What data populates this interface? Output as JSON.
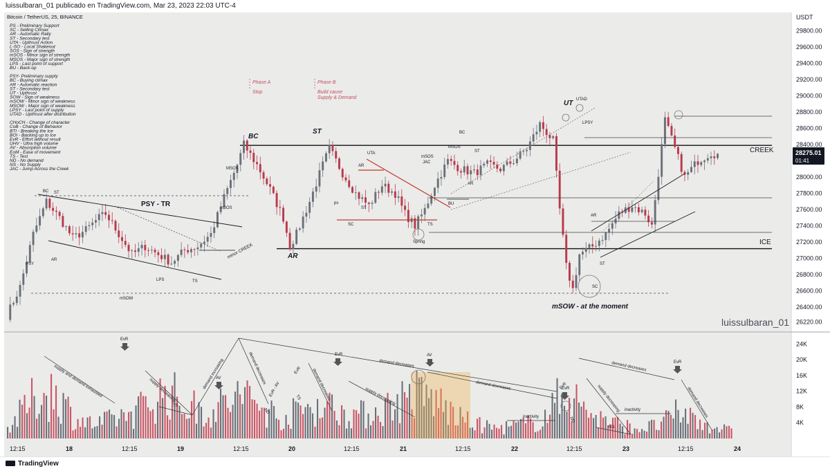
{
  "header": {
    "publication_line": "luissulbaran_01 publicado en TradingView.com, Mar 23, 2023 22:03 UTC-4",
    "symbol_line": "Bitcoin / TetherUS, 25, BINANCE"
  },
  "price_axis": {
    "currency": "USDT",
    "current_price": "28275.01",
    "countdown": "01:41",
    "accent_color": "#131722"
  },
  "legend_groups": [
    [
      "PS - Preliminary Support",
      "SC - Selling Climax",
      "AR - Automatic Rally",
      "ST - Secondary test",
      "UTA - Upthrust Action",
      "L-SO - Local Shakeout",
      "SOS - Sign of strength",
      "mSOS - Minor sign of strength",
      "MSOS - Major sign of strength",
      "LPS - Last point of support",
      "BU - Back-up"
    ],
    [
      "PSY- Preliminary supply",
      "BC - Buying climax",
      "AR - Automatic reaction",
      "ST - Secondary test",
      "UT - Upthrust",
      "SOW - Sign of weakness",
      "mSOW - Minor sign of weakness",
      "MSOW - Major sign of weakness",
      "LPSY - Last point of supply",
      "UTAD - Upthrust after distribution"
    ],
    [
      "CHoCH - Change of character",
      "CoB - Change of Behavior",
      "BTI - Breaking the Ice",
      "BOI - Backing up to Ice",
      "EvR - Effort without result",
      "UHV - Ultra high volume",
      "AV - Absorption volume",
      "EoM - Ease of movement",
      "TS - Test",
      "ND - No demand",
      "NS - No Supply",
      "JAC - Jump Across the Creek"
    ]
  ],
  "annotations": {
    "phase_a_title": "Phase A",
    "phase_a_sub": "Stop",
    "phase_b_title": "Phase B",
    "phase_b_sub1": "Build cause",
    "phase_b_sub2": "Supply & Demand",
    "psy_tr": "PSY - TR",
    "bc_big": "BC",
    "st_big": "ST",
    "ar_big": "AR",
    "ut_big": "UT",
    "msow_note": "mSOW - at the moment",
    "creek": "CREEK",
    "ice": "ICE",
    "minor_creek": "minor CREEK",
    "watermark": "luissulbaran_01",
    "small_labels": {
      "bc1": "BC",
      "st1": "ST",
      "psy": "PSY",
      "ar1": "AR",
      "msow": "mSOW",
      "lps1": "LPS",
      "ts1": "TS",
      "msos1": "mSOS",
      "msos2": "MSOS",
      "ps": "ps",
      "sc1": "SC",
      "st2": "ST",
      "uta": "UTA",
      "ar2": "AR",
      "ts2": "TS",
      "spring": "Spring",
      "bu": "BU",
      "msos3": "mSOS",
      "jac": "JAC",
      "msos4": "MSOS",
      "bc2": "BC",
      "st3": "ST",
      "ar3": "AR",
      "utad": "UTAD",
      "lpsy": "LPSY",
      "ar4": "AR",
      "st4": "ST",
      "sc2": "SC"
    }
  },
  "volume_annotations": {
    "supply_demand_exhausted": "supply and demand exhausted",
    "supply_decreasing1": "supply decreasing",
    "ts": "TS",
    "demand_increasing": "demand increasing",
    "demand_decreases1": "demand decreases",
    "evr1": "EvR",
    "av1": "AV",
    "evr2": "EvR",
    "nd1": "ND",
    "evr_av": "EvR - AV",
    "ts3": "TS",
    "evr3": "EvR",
    "demand_decreases2": "demand decreases",
    "evr4": "EvR",
    "demand_decreases_long": "demand decreases",
    "supply_decreasing2": "supply decreasing",
    "av2": "AV",
    "demand_decreases3": "demand decreases",
    "inactivity1": "inactivity",
    "evr5": "EvR",
    "evr6": "EvR",
    "nd2": "ND",
    "demand_decreases4": "demand decreases",
    "supply_decreasing3": "supply decreasing",
    "ns": "NS",
    "inactivity2": "inactivity",
    "evr7": "EvR",
    "demand_decreases5": "demand decreases"
  },
  "time_axis": [
    "12:15",
    "18",
    "12:15",
    "19",
    "12:15",
    "20",
    "12:15",
    "21",
    "12:15",
    "22",
    "12:15",
    "23",
    "12:15",
    "24"
  ],
  "footer": {
    "brand": "TradingView"
  },
  "chart_data": {
    "type": "candlestick",
    "title": "Bitcoin / TetherUS, 25, BINANCE",
    "ylabel": "USDT",
    "ylim": [
      26130,
      29990
    ],
    "y_ticks": [
      26220,
      26400,
      26600,
      26800,
      27000,
      27200,
      27400,
      27600,
      27800,
      28000,
      28200,
      28400,
      28600,
      28800,
      29000,
      29200,
      29400,
      29600,
      29800
    ],
    "volume_ticks": [
      "4K",
      "8K",
      "12K",
      "16K",
      "20K",
      "24K"
    ],
    "volume_tick_values": [
      4000,
      8000,
      12000,
      16000,
      20000,
      24000
    ],
    "levels": {
      "creek": 28390,
      "ice": 27120,
      "minor_creek": 27100
    },
    "close_path": [
      [
        0,
        26300
      ],
      [
        4,
        26650
      ],
      [
        8,
        27300
      ],
      [
        12,
        27700
      ],
      [
        16,
        27500
      ],
      [
        20,
        27250
      ],
      [
        24,
        27350
      ],
      [
        28,
        27500
      ],
      [
        30,
        27550
      ],
      [
        34,
        27300
      ],
      [
        38,
        27050
      ],
      [
        42,
        27150
      ],
      [
        46,
        27050
      ],
      [
        50,
        26950
      ],
      [
        54,
        27100
      ],
      [
        58,
        27150
      ],
      [
        62,
        27300
      ],
      [
        66,
        27750
      ],
      [
        70,
        28150
      ],
      [
        72,
        28400
      ],
      [
        76,
        28150
      ],
      [
        80,
        27850
      ],
      [
        84,
        27500
      ],
      [
        86,
        27150
      ],
      [
        88,
        27300
      ],
      [
        92,
        27700
      ],
      [
        96,
        28150
      ],
      [
        98,
        28350
      ],
      [
        102,
        28050
      ],
      [
        106,
        27800
      ],
      [
        110,
        27650
      ],
      [
        114,
        27900
      ],
      [
        118,
        27800
      ],
      [
        121,
        27550
      ],
      [
        124,
        27400
      ],
      [
        127,
        27600
      ],
      [
        130,
        27900
      ],
      [
        134,
        28200
      ],
      [
        138,
        28100
      ],
      [
        142,
        28050
      ],
      [
        146,
        28150
      ],
      [
        150,
        28100
      ],
      [
        154,
        28200
      ],
      [
        158,
        28350
      ],
      [
        162,
        28650
      ],
      [
        166,
        28450
      ],
      [
        168,
        27600
      ],
      [
        170,
        26900
      ],
      [
        172,
        26620
      ],
      [
        174,
        27050
      ],
      [
        178,
        27150
      ],
      [
        182,
        27300
      ],
      [
        186,
        27550
      ],
      [
        190,
        27650
      ],
      [
        194,
        27550
      ],
      [
        196,
        27400
      ],
      [
        198,
        28050
      ],
      [
        200,
        28700
      ],
      [
        203,
        28350
      ],
      [
        206,
        28000
      ],
      [
        210,
        28200
      ],
      [
        214,
        28300
      ],
      [
        216,
        28275
      ]
    ],
    "volume_shape": [
      [
        0,
        3
      ],
      [
        8,
        12
      ],
      [
        14,
        14
      ],
      [
        20,
        6
      ],
      [
        26,
        4
      ],
      [
        32,
        6
      ],
      [
        38,
        8
      ],
      [
        44,
        12
      ],
      [
        48,
        14
      ],
      [
        52,
        10
      ],
      [
        60,
        8
      ],
      [
        66,
        11
      ],
      [
        70,
        13
      ],
      [
        76,
        9
      ],
      [
        82,
        6
      ],
      [
        88,
        9
      ],
      [
        94,
        10
      ],
      [
        100,
        8
      ],
      [
        106,
        7
      ],
      [
        112,
        9
      ],
      [
        118,
        12
      ],
      [
        122,
        13
      ],
      [
        128,
        11
      ],
      [
        134,
        6
      ],
      [
        140,
        4
      ],
      [
        146,
        3
      ],
      [
        152,
        4
      ],
      [
        158,
        5
      ],
      [
        162,
        9
      ],
      [
        166,
        15
      ],
      [
        170,
        10
      ],
      [
        176,
        6
      ],
      [
        182,
        4
      ],
      [
        188,
        3
      ],
      [
        194,
        4
      ],
      [
        200,
        8
      ],
      [
        206,
        5
      ],
      [
        212,
        3
      ],
      [
        216,
        2
      ]
    ]
  }
}
